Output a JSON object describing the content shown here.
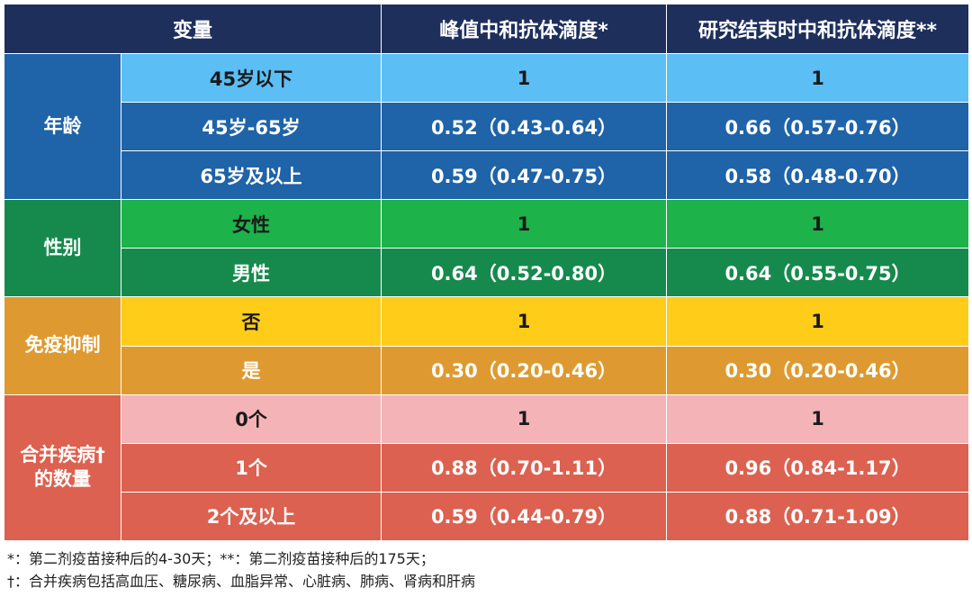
{
  "header": {
    "col1": "变量",
    "col2": "峰值中和抗体滴度*",
    "col3": "研究结束时中和抗体滴度**"
  },
  "groups": [
    {
      "category": "年龄",
      "cat_color": "#1f63a8",
      "rows": [
        {
          "label": "45岁以下",
          "peak": "1",
          "end": "1",
          "color": "#5bbef5",
          "text": "dark"
        },
        {
          "label": "45岁-65岁",
          "peak": "0.52（0.43-0.64）",
          "end": "0.66（0.57-0.76）",
          "color": "#1f63a8",
          "text": "light"
        },
        {
          "label": "65岁及以上",
          "peak": "0.59（0.47-0.75）",
          "end": "0.58（0.48-0.70）",
          "color": "#1f63a8",
          "text": "light"
        }
      ]
    },
    {
      "category": "性别",
      "cat_color": "#168a4d",
      "rows": [
        {
          "label": "女性",
          "peak": "1",
          "end": "1",
          "color": "#1db24a",
          "text": "dark"
        },
        {
          "label": "男性",
          "peak": "0.64（0.52-0.80）",
          "end": "0.64（0.55-0.75）",
          "color": "#168a4d",
          "text": "light"
        }
      ]
    },
    {
      "category": "免疫抑制",
      "cat_color": "#de9a30",
      "rows": [
        {
          "label": "否",
          "peak": "1",
          "end": "1",
          "color": "#ffcc1a",
          "text": "dark"
        },
        {
          "label": "是",
          "peak": "0.30（0.20-0.46）",
          "end": "0.30（0.20-0.46）",
          "color": "#de9a30",
          "text": "light"
        }
      ]
    },
    {
      "category": "合并疾病†的数量",
      "cat_color": "#dc6150",
      "rows": [
        {
          "label": "0个",
          "peak": "1",
          "end": "1",
          "color": "#f4b3b7",
          "text": "dark"
        },
        {
          "label": "1个",
          "peak": "0.88（0.70-1.11）",
          "end": "0.96（0.84-1.17）",
          "color": "#dc6150",
          "text": "light"
        },
        {
          "label": "2个及以上",
          "peak": "0.59（0.44-0.79）",
          "end": "0.88（0.71-1.09）",
          "color": "#dc6150",
          "text": "light"
        }
      ]
    }
  ],
  "footnotes": [
    "*：第二剂疫苗接种后的4-30天；**：第二剂疫苗接种后的175天；",
    "†：合并疾病包括高血压、糖尿病、血脂异常、心脏病、肺病、肾病和肝病"
  ]
}
